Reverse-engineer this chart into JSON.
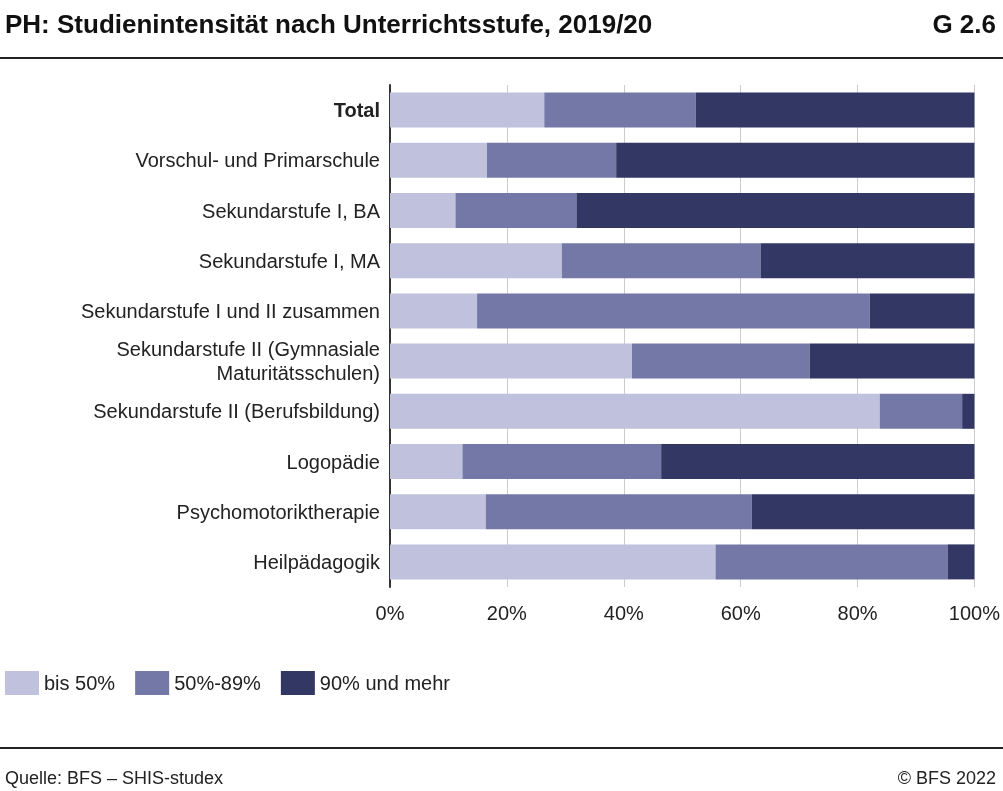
{
  "chart_data": {
    "type": "bar",
    "orientation": "horizontal",
    "stacked": true,
    "title": "PH: Studienintensität nach Unterrichtsstufe, 2019/20",
    "categories": [
      "Total",
      "Vorschul- und Primarschule",
      "Sekundarstufe I, BA",
      "Sekundarstufe I, MA",
      "Sekundarstufe I und II zusammen",
      "Sekundarstufe II (Gymnasiale Maturitätsschulen)",
      "Sekundarstufe II (Berufsbildung)",
      "Logopädie",
      "Psychomotoriktherapie",
      "Heilpädagogik"
    ],
    "series": [
      {
        "name": "bis 50%",
        "color": "#c0c1dd",
        "values": [
          26.4,
          16.6,
          11.2,
          29.4,
          14.9,
          41.4,
          83.8,
          12.4,
          16.4,
          55.7
        ]
      },
      {
        "name": "50%-89%",
        "color": "#7378a6",
        "values": [
          25.9,
          22.1,
          20.7,
          34.0,
          67.2,
          30.4,
          14.1,
          34.0,
          45.5,
          39.7
        ]
      },
      {
        "name": "90% und mehr",
        "color": "#323764",
        "values": [
          47.7,
          61.3,
          68.1,
          36.6,
          17.9,
          28.2,
          2.1,
          53.6,
          38.1,
          4.6
        ]
      }
    ],
    "xlim": [
      0,
      100
    ],
    "xticks": [
      {
        "value": 0,
        "label": "0%"
      },
      {
        "value": 20,
        "label": "20%"
      },
      {
        "value": 40,
        "label": "40%"
      },
      {
        "value": 60,
        "label": "60%"
      },
      {
        "value": 80,
        "label": "80%"
      },
      {
        "value": 100,
        "label": "100%"
      }
    ],
    "grid": "x",
    "legend": "bottom left",
    "annotations": [
      "G 2.6",
      "Quelle: BFS – SHIS-studex",
      "© BFS 2022"
    ]
  }
}
